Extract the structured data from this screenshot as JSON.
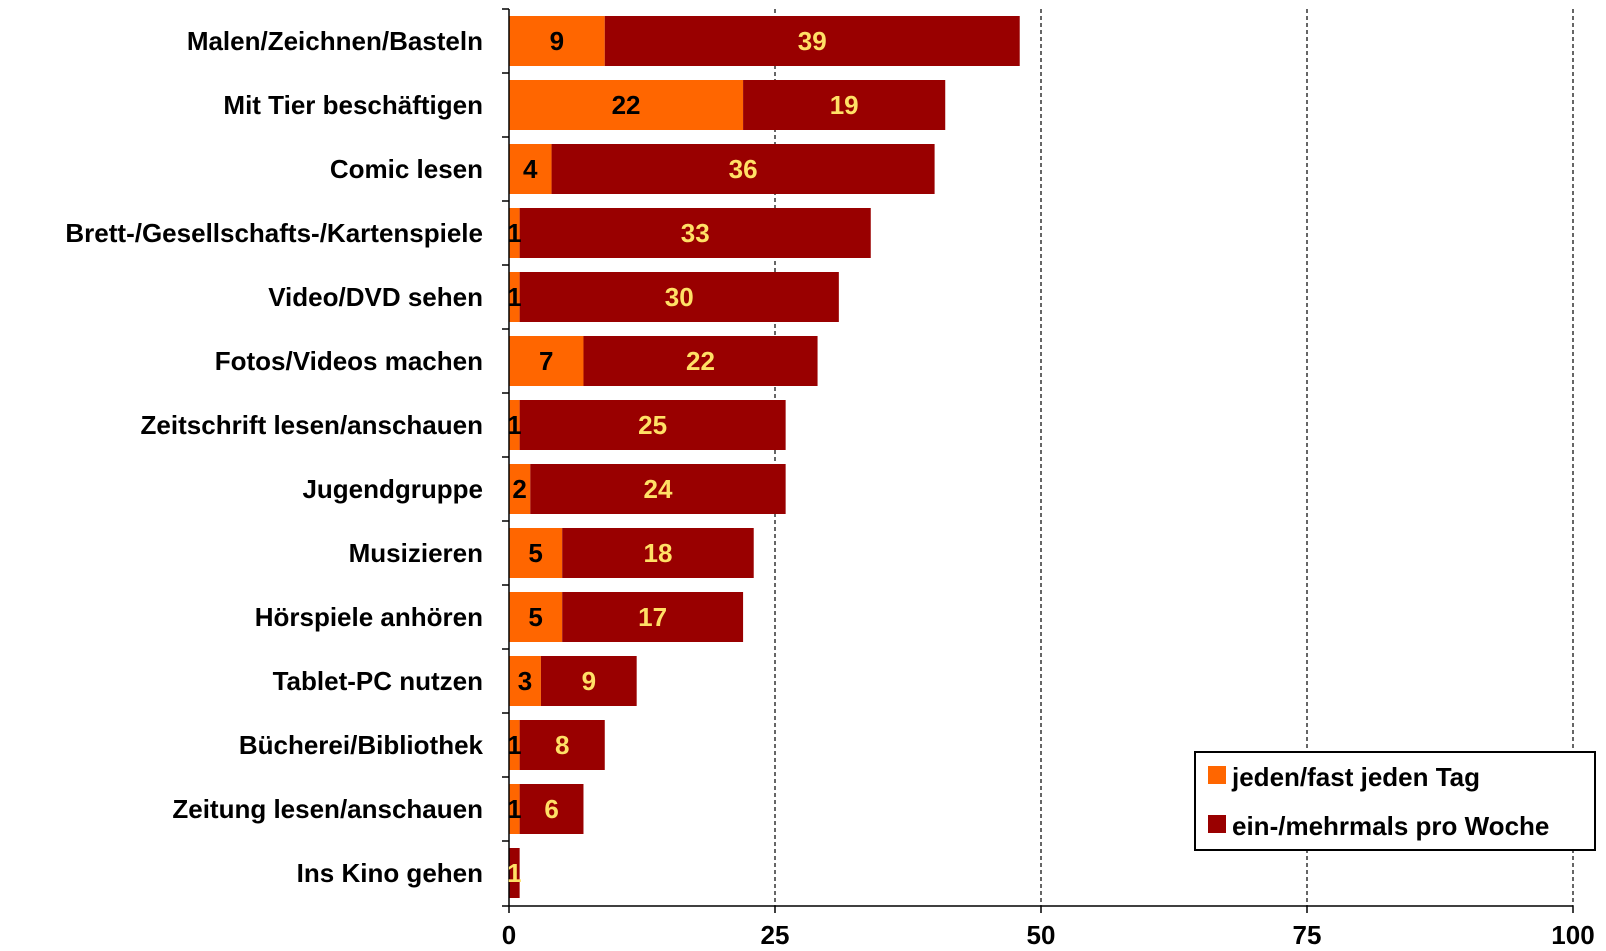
{
  "chart_data": {
    "type": "bar",
    "orientation": "horizontal",
    "stacked": true,
    "categories": [
      "Malen/Zeichnen/Basteln",
      "Mit Tier beschäftigen",
      "Comic lesen",
      "Brett-/Gesellschafts-/Kartenspiele",
      "Video/DVD sehen",
      "Fotos/Videos machen",
      "Zeitschrift lesen/anschauen",
      "Jugendgruppe",
      "Musizieren",
      "Hörspiele anhören",
      "Tablet-PC nutzen",
      "Bücherei/Bibliothek",
      "Zeitung lesen/anschauen",
      "Ins Kino gehen"
    ],
    "series": [
      {
        "name": "jeden/fast jeden Tag",
        "color": "#FF6600",
        "label_color": "#000000",
        "values": [
          9,
          22,
          4,
          1,
          1,
          7,
          1,
          2,
          5,
          5,
          3,
          1,
          1,
          0
        ]
      },
      {
        "name": "ein-/mehrmals pro Woche",
        "color": "#990000",
        "label_color": "#FFE066",
        "values": [
          39,
          19,
          36,
          33,
          30,
          22,
          25,
          24,
          18,
          17,
          9,
          8,
          6,
          1
        ]
      }
    ],
    "xlim": [
      0,
      100
    ],
    "xticks": [
      0,
      25,
      50,
      75,
      100
    ],
    "gridlines": "dashed vertical",
    "legend_position": "bottom-right",
    "title": "",
    "xlabel": "",
    "ylabel": ""
  }
}
